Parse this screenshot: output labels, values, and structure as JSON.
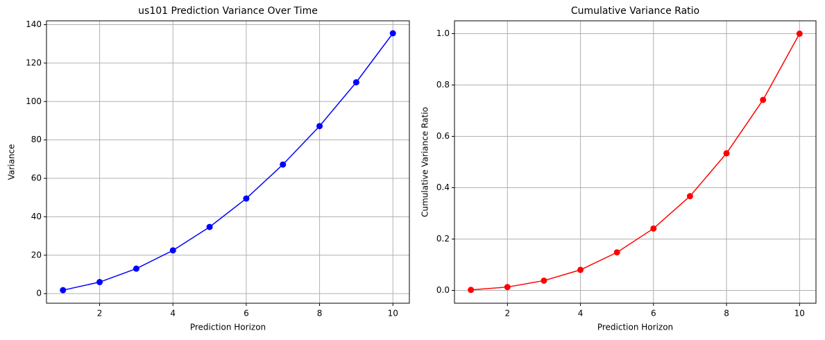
{
  "chart_data": [
    {
      "type": "line",
      "title": "us101 Prediction Variance Over Time",
      "xlabel": "Prediction Horizon",
      "ylabel": "Variance",
      "x": [
        1,
        2,
        3,
        4,
        5,
        6,
        7,
        8,
        9,
        10
      ],
      "values": [
        1.8,
        6.0,
        13.0,
        22.5,
        34.7,
        49.5,
        67.2,
        87.2,
        110.0,
        135.5
      ],
      "color": "#0000ff",
      "xlim": [
        0.55,
        10.45
      ],
      "ylim": [
        -5,
        142
      ],
      "xticks": [
        2,
        4,
        6,
        8,
        10
      ],
      "yticks": [
        0,
        20,
        40,
        60,
        80,
        100,
        120,
        140
      ],
      "grid": true
    },
    {
      "type": "line",
      "title": "Cumulative Variance Ratio",
      "xlabel": "Prediction Horizon",
      "ylabel": "Cumulative Variance Ratio",
      "x": [
        1,
        2,
        3,
        4,
        5,
        6,
        7,
        8,
        9,
        10
      ],
      "values": [
        0.002,
        0.013,
        0.038,
        0.08,
        0.148,
        0.241,
        0.367,
        0.534,
        0.742,
        1.0
      ],
      "color": "#ff0000",
      "xlim": [
        0.55,
        10.45
      ],
      "ylim": [
        -0.05,
        1.05
      ],
      "xticks": [
        2,
        4,
        6,
        8,
        10
      ],
      "yticks": [
        {
          "value": 0,
          "label": "0.0"
        },
        0.2,
        0.4,
        0.6,
        0.8,
        {
          "value": 1,
          "label": "1.0"
        }
      ],
      "grid": true
    }
  ]
}
